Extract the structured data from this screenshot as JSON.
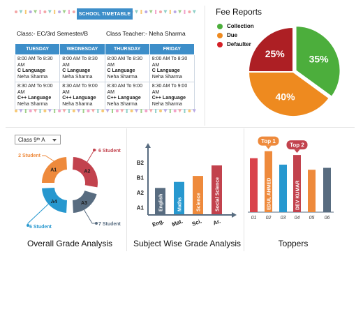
{
  "timetable": {
    "badge": "SCHOOL TIMETABLE",
    "class_info": "Class:- EC/3rd Semester/B",
    "teacher_info": "Class Teacher:- Neha Sharma",
    "days": [
      "TUESDAY",
      "WEDNESDAY",
      "THURSDAY",
      "FRIDAY"
    ],
    "rows": [
      [
        {
          "time": "8:00 AM To 8:30 AM",
          "subject": "C Language",
          "teacher": "Neha Sharma"
        },
        {
          "time": "8:00 AM To 8:30 AM",
          "subject": "C Language",
          "teacher": "Neha Sharma"
        },
        {
          "time": "8:00 AM To 8:30 AM",
          "subject": "C Language",
          "teacher": "Neha Sharma"
        },
        {
          "time": "8:00 AM To 8:30 AM",
          "subject": "C Language",
          "teacher": "Neha Sharma"
        }
      ],
      [
        {
          "time": "8:30 AM To 9:00 AM",
          "subject": "C++ Language",
          "teacher": "Neha Sharma"
        },
        {
          "time": "8:30 AM To 9:00 AM",
          "subject": "C++ Language",
          "teacher": "Neha Sharma"
        },
        {
          "time": "8:30 AM To 9:00 AM",
          "subject": "C++ Language",
          "teacher": "Neha Sharma"
        },
        {
          "time": "8:30 AM To 9:00 AM",
          "subject": "C++ Language",
          "teacher": "Neha Sharma"
        }
      ]
    ]
  },
  "fee_reports": {
    "title": "Fee Reports",
    "legend": [
      {
        "label": "Collection",
        "color": "#4cae3c"
      },
      {
        "label": "Due",
        "color": "#ee8a1f"
      },
      {
        "label": "Defaulter",
        "color": "#d42027"
      }
    ]
  },
  "grade_analysis": {
    "class_select": "Class 9ᵗʰ A",
    "caption": "Overall Grade Analysis"
  },
  "subject_analysis": {
    "caption": "Subject Wise Grade Analysis"
  },
  "toppers": {
    "caption": "Toppers",
    "tag1": "Top 1",
    "tag2": "Top 2"
  },
  "chart_data": [
    {
      "type": "pie",
      "title": "Fee Reports",
      "categories": [
        "Collection",
        "Due",
        "Defaulter"
      ],
      "values": [
        35,
        40,
        25
      ],
      "labels": [
        "35%",
        "40%",
        "25%"
      ],
      "colors": [
        "#4cae3c",
        "#ee8a1f",
        "#ad1f24"
      ]
    },
    {
      "type": "pie",
      "variant": "donut",
      "title": "Overall Grade Analysis",
      "categories": [
        "A1",
        "A2",
        "A3",
        "A4"
      ],
      "values": [
        2,
        6,
        7,
        6
      ],
      "annotations": [
        "2 Student",
        "6 Student",
        "7 Student",
        "6 Student"
      ],
      "colors": [
        "#ee8a3c",
        "#c2424d",
        "#586c80",
        "#2798cf"
      ]
    },
    {
      "type": "bar",
      "title": "Subject Wise Grade Analysis",
      "categories": [
        "Eng.",
        "Mat.",
        "Sci.",
        "Ar."
      ],
      "bar_labels": [
        "English",
        "Maths",
        "Science",
        "Social Science"
      ],
      "values": [
        2.3,
        2.7,
        3.1,
        3.8
      ],
      "y_tick_labels": [
        "A1",
        "A2",
        "B1",
        "B2"
      ],
      "colors": [
        "#586c80",
        "#2798cf",
        "#ee8a3c",
        "#c2424d"
      ]
    },
    {
      "type": "bar",
      "title": "Toppers",
      "categories": [
        "01",
        "02",
        "03",
        "04",
        "05",
        "06"
      ],
      "values": [
        8.4,
        9.5,
        7.4,
        8.9,
        6.6,
        6.9
      ],
      "bar_labels": [
        "",
        "EDUL AHMED",
        "",
        "DEV KUMAR",
        "",
        ""
      ],
      "colors": [
        "#d9434b",
        "#ee8a3c",
        "#2798cf",
        "#c2424d",
        "#ee8a3c",
        "#586c80"
      ]
    }
  ]
}
